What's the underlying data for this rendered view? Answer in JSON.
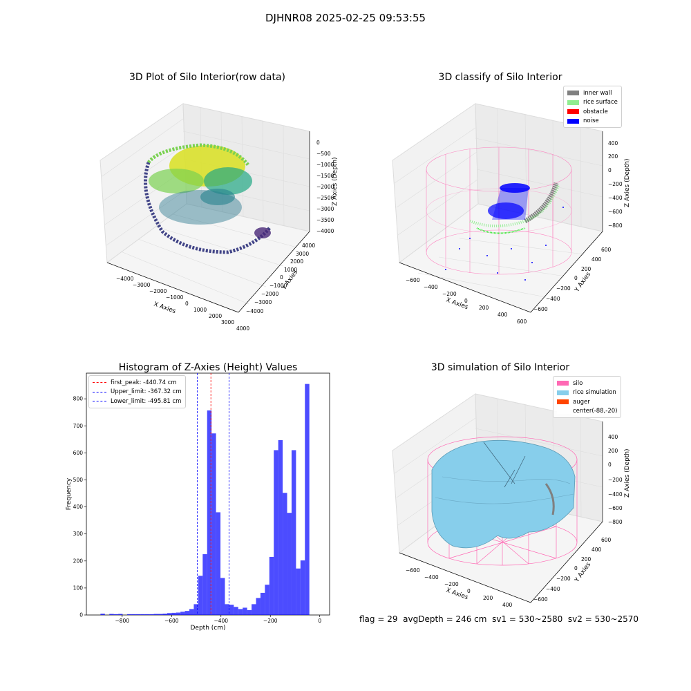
{
  "suptitle": "DJHNR08 2025-02-25 09:53:55",
  "panels": {
    "raw": {
      "title": "3D Plot of Silo Interior(row data)",
      "xlabel": "X Axies",
      "ylabel": "Y Axies",
      "zlabel": "Z Axies (Depth)",
      "xticks": [
        "−4000",
        "−3000",
        "−2000",
        "−1000",
        "0",
        "1000",
        "2000",
        "3000",
        "4000"
      ],
      "yticks": [
        "4000",
        "3000",
        "2000",
        "1000",
        "0",
        "−1000",
        "−2000",
        "−3000",
        "−4000"
      ],
      "zticks": [
        "0",
        "−500",
        "−1000",
        "−1500",
        "−2000",
        "−2500",
        "−3000",
        "−3500",
        "−4000"
      ]
    },
    "classify": {
      "title": "3D classify of Silo Interior",
      "xlabel": "X Axies",
      "ylabel": "Y Axies",
      "zlabel": "Z Axies (Depth)",
      "xticks": [
        "−600",
        "−400",
        "−200",
        "0",
        "200",
        "400",
        "600"
      ],
      "yticks": [
        "600",
        "400",
        "200",
        "0",
        "−200",
        "−400",
        "−600"
      ],
      "zticks": [
        "400",
        "200",
        "0",
        "−200",
        "−400",
        "−600",
        "−800"
      ],
      "legend": [
        {
          "label": "inner wall",
          "color": "#808080"
        },
        {
          "label": "rice surface",
          "color": "#90ee90"
        },
        {
          "label": "obstacle",
          "color": "#ff0000"
        },
        {
          "label": "noise",
          "color": "#0000ff"
        }
      ]
    },
    "simulation": {
      "title": "3D simulation of Silo Interior",
      "xlabel": "X Axies",
      "ylabel": "Y Axies",
      "zlabel": "Z Axies (Depth)",
      "xticks": [
        "−600",
        "−400",
        "−200",
        "0",
        "200",
        "400"
      ],
      "yticks": [
        "600",
        "400",
        "200",
        "0",
        "−200",
        "−400",
        "−600"
      ],
      "zticks": [
        "400",
        "200",
        "0",
        "−200",
        "−400",
        "−600",
        "−800"
      ],
      "legend": [
        {
          "label": "silo",
          "color": "#ff69b4"
        },
        {
          "label": "rice simulation",
          "color": "#87ceeb"
        },
        {
          "label": "auger",
          "color": "#ff4500"
        },
        {
          "label": "center(-88,-20)",
          "color": "#ffffff"
        }
      ]
    }
  },
  "chart_data": {
    "type": "bar",
    "title": "Histogram of Z-Axies (Height) Values",
    "xlabel": "Depth (cm)",
    "ylabel": "Frequency",
    "xlim": [
      -945,
      40
    ],
    "ylim": [
      0,
      895
    ],
    "xticks": [
      -800,
      -600,
      -400,
      -200,
      0
    ],
    "yticks": [
      0,
      100,
      200,
      300,
      400,
      500,
      600,
      700,
      800
    ],
    "bar_color": "#0000ff",
    "bin_width": 18,
    "bins": [
      {
        "x": -906,
        "v": 0
      },
      {
        "x": -888,
        "v": 5
      },
      {
        "x": -870,
        "v": 0
      },
      {
        "x": -852,
        "v": 4
      },
      {
        "x": -834,
        "v": 3
      },
      {
        "x": -816,
        "v": 4
      },
      {
        "x": -798,
        "v": 0
      },
      {
        "x": -780,
        "v": 3
      },
      {
        "x": -762,
        "v": 3
      },
      {
        "x": -744,
        "v": 3
      },
      {
        "x": -726,
        "v": 3
      },
      {
        "x": -708,
        "v": 3
      },
      {
        "x": -690,
        "v": 3
      },
      {
        "x": -672,
        "v": 4
      },
      {
        "x": -654,
        "v": 4
      },
      {
        "x": -636,
        "v": 5
      },
      {
        "x": -618,
        "v": 7
      },
      {
        "x": -600,
        "v": 8
      },
      {
        "x": -582,
        "v": 9
      },
      {
        "x": -564,
        "v": 12
      },
      {
        "x": -546,
        "v": 15
      },
      {
        "x": -528,
        "v": 22
      },
      {
        "x": -510,
        "v": 40
      },
      {
        "x": -492,
        "v": 145
      },
      {
        "x": -474,
        "v": 225
      },
      {
        "x": -456,
        "v": 757
      },
      {
        "x": -438,
        "v": 672
      },
      {
        "x": -420,
        "v": 380
      },
      {
        "x": -402,
        "v": 137
      },
      {
        "x": -384,
        "v": 40
      },
      {
        "x": -366,
        "v": 38
      },
      {
        "x": -348,
        "v": 30
      },
      {
        "x": -330,
        "v": 22
      },
      {
        "x": -312,
        "v": 27
      },
      {
        "x": -294,
        "v": 18
      },
      {
        "x": -276,
        "v": 40
      },
      {
        "x": -258,
        "v": 63
      },
      {
        "x": -240,
        "v": 82
      },
      {
        "x": -222,
        "v": 112
      },
      {
        "x": -204,
        "v": 215
      },
      {
        "x": -186,
        "v": 610
      },
      {
        "x": -168,
        "v": 647
      },
      {
        "x": -150,
        "v": 452
      },
      {
        "x": -132,
        "v": 378
      },
      {
        "x": -114,
        "v": 610
      },
      {
        "x": -96,
        "v": 172
      },
      {
        "x": -78,
        "v": 202
      },
      {
        "x": -60,
        "v": 855
      }
    ],
    "vlines": [
      {
        "label": "first_peak: -440.74 cm",
        "x": -440.74,
        "color": "#ff0000"
      },
      {
        "label": "Upper_limit: -367.32 cm",
        "x": -367.32,
        "color": "#0000ff"
      },
      {
        "label": "Lower_limit: -495.81 cm",
        "x": -495.81,
        "color": "#0000ff"
      }
    ]
  },
  "footer": {
    "flag": "flag = 29",
    "avg": "avgDepth = 246 cm",
    "sv1": "sv1 = 530~2580",
    "sv2": "sv2 = 530~2570"
  }
}
